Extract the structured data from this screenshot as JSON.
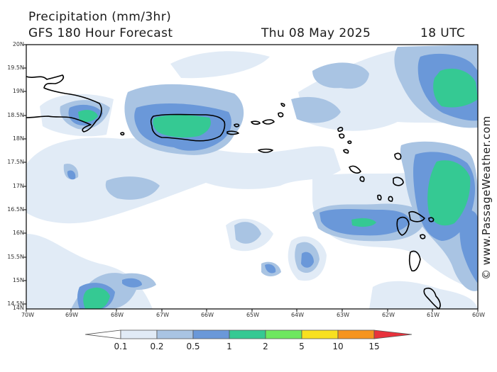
{
  "header": {
    "title": "Precipitation (mm/3hr)",
    "model": "GFS 180 Hour Forecast",
    "date": "Thu 08 May 2025",
    "time": "18 UTC"
  },
  "map": {
    "lat_labels": [
      "20N",
      "19.5N",
      "19N",
      "18.5N",
      "18N",
      "17.5N",
      "17N",
      "16.5N",
      "16N",
      "15.5N",
      "15N",
      "14.5N",
      "14N"
    ],
    "lon_labels": [
      "70W",
      "69W",
      "68W",
      "67W",
      "66W",
      "65W",
      "64W",
      "63W",
      "62W",
      "61W",
      "60W"
    ],
    "copyright": "© www.PassageWeather.com"
  },
  "legend": {
    "labels": [
      "0.1",
      "0.2",
      "0.5",
      "1",
      "2",
      "5",
      "10",
      "15"
    ],
    "colors": [
      "#ffffff",
      "#e1ebf6",
      "#a9c4e3",
      "#6a98d9",
      "#35c993",
      "#6ee85f",
      "#f8e020",
      "#f6941e",
      "#e8323c"
    ]
  }
}
